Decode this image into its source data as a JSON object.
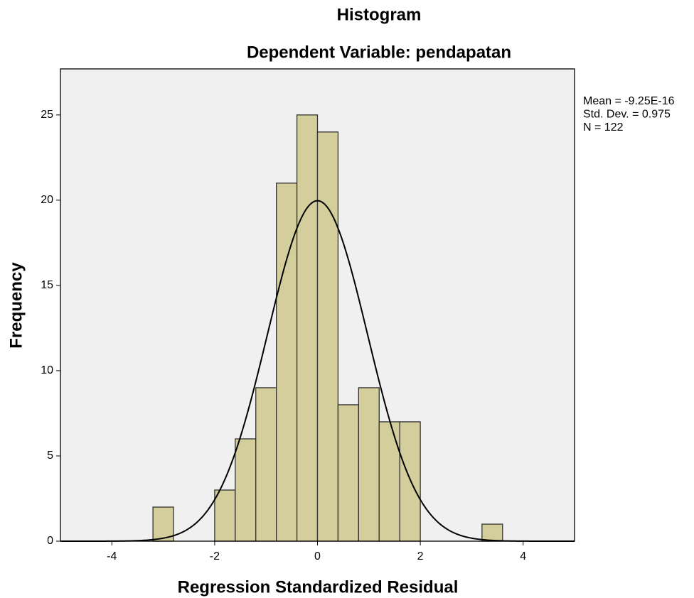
{
  "chart_data": {
    "type": "histogram",
    "title": "Histogram",
    "subtitle": "Dependent Variable: pendapatan",
    "x_label": "Regression Standardized Residual",
    "y_label": "Frequency",
    "bins": [
      -3.2,
      -2.8,
      -2.4,
      -2.0,
      -1.6,
      -1.2,
      -0.8,
      -0.4,
      0,
      0.4,
      0.8,
      1.2,
      1.6,
      2.0,
      2.4,
      2.8,
      3.2,
      3.6
    ],
    "counts": [
      2,
      0,
      0,
      3,
      6,
      9,
      21,
      25,
      24,
      8,
      9,
      7,
      7,
      0,
      0,
      0,
      1
    ],
    "color": "#d3ce9b",
    "xlim": [
      -5,
      5
    ],
    "ylim": [
      0,
      27.7
    ],
    "xticks": [
      -4,
      -2,
      0,
      2,
      4
    ],
    "yticks": [
      0,
      5,
      10,
      15,
      20,
      25
    ],
    "grid": false,
    "stats": [
      {
        "label": "Mean = -9.25E-16",
        "value": -9.25e-16
      },
      {
        "label": "Std. Dev. = 0.975",
        "value": 0.975
      },
      {
        "label": "N = 122",
        "value": 122
      }
    ]
  }
}
